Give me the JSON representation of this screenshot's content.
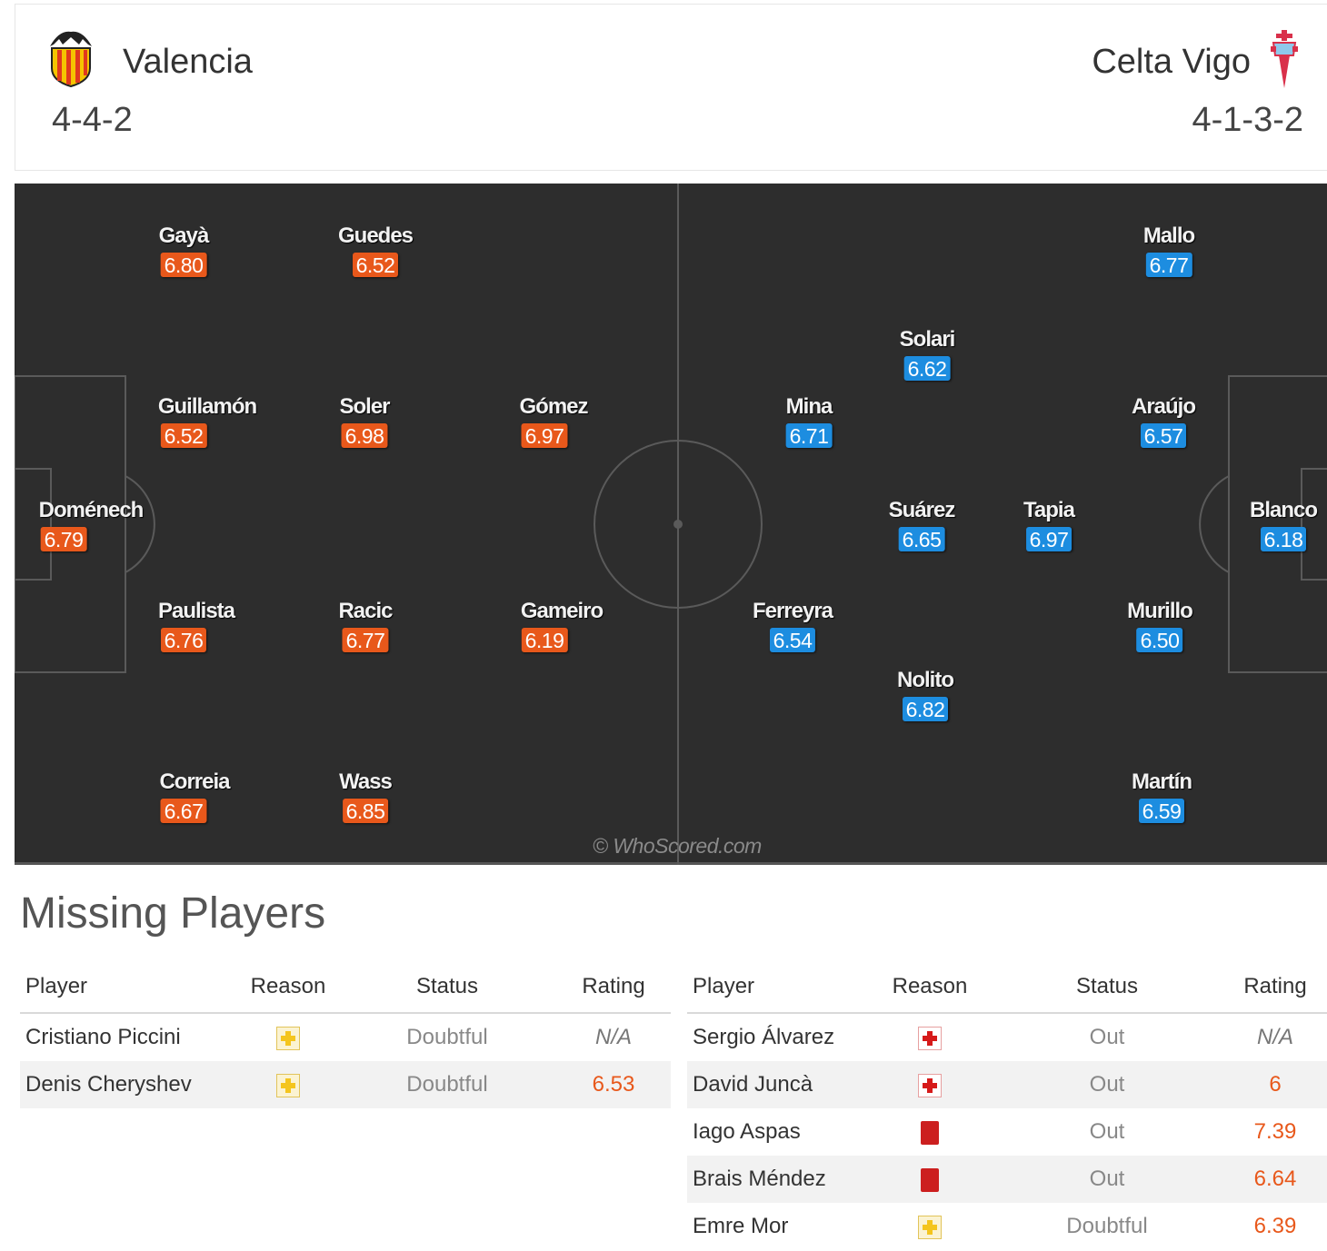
{
  "home": {
    "name": "Valencia",
    "formation": "4-4-2",
    "crest_icon": "valencia-bat-crest-icon",
    "rating_color": "#e8581b",
    "players": [
      {
        "name": "Gayà",
        "rating": "6.80"
      },
      {
        "name": "Guedes",
        "rating": "6.52"
      },
      {
        "name": "Guillamón",
        "rating": "6.52"
      },
      {
        "name": "Soler",
        "rating": "6.98"
      },
      {
        "name": "Gómez",
        "rating": "6.97"
      },
      {
        "name": "Doménech",
        "rating": "6.79"
      },
      {
        "name": "Paulista",
        "rating": "6.76"
      },
      {
        "name": "Racic",
        "rating": "6.77"
      },
      {
        "name": "Gameiro",
        "rating": "6.19"
      },
      {
        "name": "Correia",
        "rating": "6.67"
      },
      {
        "name": "Wass",
        "rating": "6.85"
      }
    ]
  },
  "away": {
    "name": "Celta Vigo",
    "formation": "4-1-3-2",
    "crest_icon": "celta-cross-crest-icon",
    "rating_color": "#1d8de0",
    "players": [
      {
        "name": "Mallo",
        "rating": "6.77"
      },
      {
        "name": "Solari",
        "rating": "6.62"
      },
      {
        "name": "Mina",
        "rating": "6.71"
      },
      {
        "name": "Araújo",
        "rating": "6.57"
      },
      {
        "name": "Suárez",
        "rating": "6.65"
      },
      {
        "name": "Tapia",
        "rating": "6.97"
      },
      {
        "name": "Blanco",
        "rating": "6.18"
      },
      {
        "name": "Ferreyra",
        "rating": "6.54"
      },
      {
        "name": "Murillo",
        "rating": "6.50"
      },
      {
        "name": "Nolito",
        "rating": "6.82"
      },
      {
        "name": "Martín",
        "rating": "6.59"
      }
    ]
  },
  "watermark": "© WhoScored.com",
  "missing": {
    "title": "Missing Players",
    "headers": {
      "player": "Player",
      "reason": "Reason",
      "status": "Status",
      "rating": "Rating"
    },
    "home": [
      {
        "player": "Cristiano Piccini",
        "reason_icon": "doubtful-icon",
        "status": "Doubtful",
        "rating": "N/A"
      },
      {
        "player": "Denis Cheryshev",
        "reason_icon": "doubtful-icon",
        "status": "Doubtful",
        "rating": "6.53"
      }
    ],
    "away": [
      {
        "player": "Sergio Álvarez",
        "reason_icon": "injury-icon",
        "status": "Out",
        "rating": "N/A"
      },
      {
        "player": "David Juncà",
        "reason_icon": "injury-icon",
        "status": "Out",
        "rating": "6"
      },
      {
        "player": "Iago Aspas",
        "reason_icon": "red-card-icon",
        "status": "Out",
        "rating": "7.39"
      },
      {
        "player": "Brais Méndez",
        "reason_icon": "red-card-icon",
        "status": "Out",
        "rating": "6.64"
      },
      {
        "player": "Emre Mor",
        "reason_icon": "doubtful-icon",
        "status": "Doubtful",
        "rating": "6.39"
      }
    ]
  }
}
